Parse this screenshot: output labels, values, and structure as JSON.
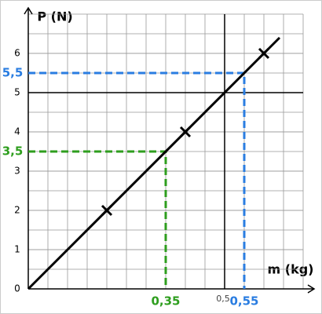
{
  "chart_data": {
    "type": "line",
    "y_label": "P (N)",
    "x_label": "m (kg)",
    "xlim": [
      0,
      0.728
    ],
    "ylim": [
      0,
      7.16
    ],
    "xticks": [
      {
        "value": 0.5,
        "label": "0,5"
      }
    ],
    "yticks": [
      0,
      1,
      2,
      3,
      4,
      5,
      6
    ],
    "grid": true,
    "series": [
      {
        "color": "#000000",
        "x": [
          0,
          0.64
        ],
        "values": [
          0,
          6.4
        ],
        "style": "line"
      },
      {
        "color": "#000000",
        "x": [
          0.2,
          0.4,
          0.6
        ],
        "values": [
          2,
          4,
          6
        ],
        "style": "cross"
      }
    ],
    "readings": [
      {
        "x": 0.35,
        "y": 3.5,
        "x_label": "0,35",
        "y_label": "3,5",
        "color": "#2e9e1e"
      },
      {
        "x": 0.55,
        "y": 5.5,
        "x_label": "0,55",
        "y_label": "5,5",
        "color": "#2a7de1"
      }
    ]
  }
}
